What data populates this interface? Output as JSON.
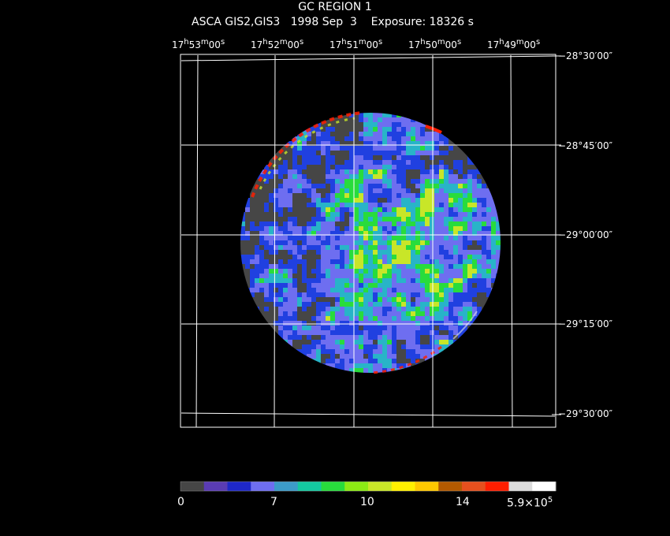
{
  "header": {
    "title": "GC REGION 1",
    "subtitle": "ASCA GIS2,GIS3   1998 Sep  3    Exposure: 18326 s"
  },
  "ra_ticks": [
    {
      "h": "17",
      "m": "53",
      "s": "00"
    },
    {
      "h": "17",
      "m": "52",
      "s": "00"
    },
    {
      "h": "17",
      "m": "51",
      "s": "00"
    },
    {
      "h": "17",
      "m": "50",
      "s": "00"
    },
    {
      "h": "17",
      "m": "49",
      "s": "00"
    }
  ],
  "dec_ticks": [
    "−28°30′00″",
    "−28°45′00″",
    "−29°00′00″",
    "−29°15′00″",
    "−29°30′00″"
  ],
  "colorbar": {
    "labels": [
      "0",
      "7",
      "10",
      "14",
      "5.9×10"
    ],
    "exponent": "5",
    "colors": [
      "#464646",
      "#5a3cb4",
      "#1e28c8",
      "#6e6ef0",
      "#3c9bc8",
      "#14c8a0",
      "#28dc3c",
      "#8ceb14",
      "#c8e628",
      "#fff000",
      "#ffc800",
      "#b45a00",
      "#e6501e",
      "#ff1e00",
      "#dcdcdc",
      "#ffffff"
    ]
  },
  "image": {
    "palette": [
      "#464646",
      "#2040e0",
      "#6e6ef0",
      "#28b4c8",
      "#28dc3c",
      "#c8e628",
      "#ff1e00"
    ]
  }
}
